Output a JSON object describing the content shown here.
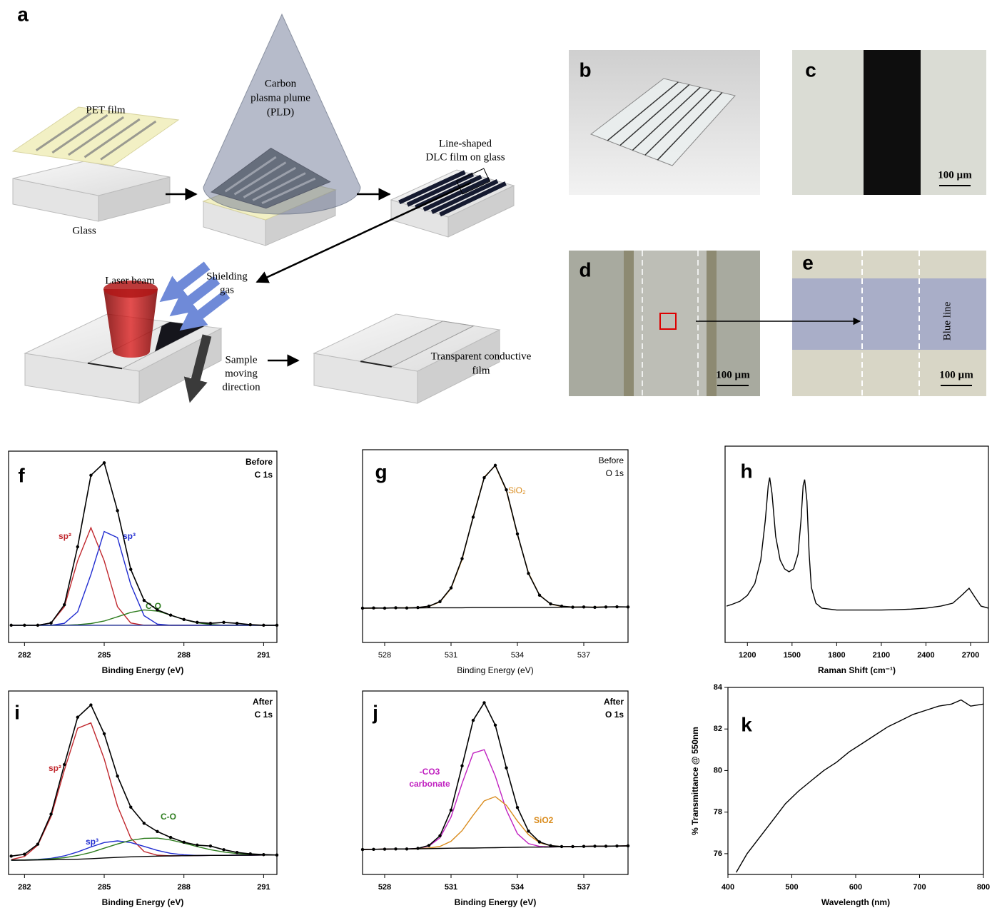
{
  "schematic": {
    "panel": "a",
    "pet_film": "PET film",
    "glass": "Glass",
    "plume": [
      "Carbon",
      "plasma plume",
      "(PLD)"
    ],
    "dlc": [
      "Line-shaped",
      "DLC film on glass"
    ],
    "laser": "Laser beam",
    "gas": [
      "Shielding",
      "gas"
    ],
    "moving": [
      "Sample",
      "moving",
      "direction"
    ],
    "film": [
      "Transparent  conductive",
      "film"
    ]
  },
  "photos": [
    {
      "panel": "b"
    },
    {
      "panel": "c",
      "scale_bar": "100 µm"
    },
    {
      "panel": "d",
      "scale_bar": "100 µm"
    },
    {
      "panel": "e",
      "scale_bar": "100 µm",
      "note": "Blue line"
    }
  ],
  "chart_data": [
    {
      "panel": "f",
      "type": "line",
      "xlabel": "Binding Energy (eV)",
      "annotations": [
        "Before",
        "C 1s"
      ],
      "xlim": [
        281.4,
        291.5
      ],
      "xticks": [
        282,
        285,
        288,
        291
      ],
      "ylim": [
        0,
        100
      ],
      "x": [
        281.5,
        282,
        282.5,
        283,
        283.5,
        284,
        284.5,
        285,
        285.5,
        286,
        286.5,
        287,
        287.5,
        288,
        288.5,
        289,
        289.5,
        290,
        290.5,
        291,
        291.5
      ],
      "series": [
        {
          "name": "sp²",
          "color": "#c0272d",
          "values": [
            9,
            9,
            9,
            10.2,
            18.7,
            42.7,
            60,
            42.7,
            18.7,
            10.2,
            9,
            9,
            9,
            9,
            9,
            9,
            9,
            9,
            9,
            9,
            9
          ]
        },
        {
          "name": "sp³",
          "color": "#1f2bd0",
          "values": [
            9,
            9,
            9,
            9,
            10,
            16,
            35.5,
            58,
            54.8,
            30.3,
            14,
            9.6,
            9,
            9,
            9,
            9,
            9,
            9,
            9,
            9,
            9
          ]
        },
        {
          "name": "C-O",
          "color": "#2e7d1f",
          "values": [
            9,
            9,
            9,
            9,
            9,
            9.3,
            9.9,
            11.2,
            13.4,
            15.7,
            17,
            16.4,
            14.3,
            12,
            10.3,
            9.4,
            9,
            9,
            9,
            9,
            9
          ]
        },
        {
          "color": "#1a2a90",
          "values": [
            9,
            9,
            9,
            9,
            9,
            9,
            9,
            9,
            9,
            9,
            9,
            9,
            9,
            9,
            9,
            9,
            9,
            9,
            9,
            9,
            9
          ]
        },
        {
          "color": "#000000",
          "markers": true,
          "values": [
            9,
            9,
            9,
            10.2,
            19.7,
            50,
            87.4,
            93.9,
            68.9,
            38.2,
            22,
            17,
            14.3,
            12,
            10.5,
            10,
            10.5,
            10,
            9.3,
            9,
            9
          ]
        }
      ]
    },
    {
      "panel": "g",
      "type": "line",
      "xlabel": "Binding Energy (eV)",
      "annotations": [
        "Before",
        "O 1s"
      ],
      "xlim": [
        527,
        539
      ],
      "xticks": [
        528,
        531,
        534,
        537
      ],
      "ylim": [
        0,
        100
      ],
      "x": [
        527,
        527.5,
        528,
        528.5,
        529,
        529.5,
        530,
        530.5,
        531,
        531.5,
        532,
        532.5,
        533,
        533.5,
        534,
        534.5,
        535,
        535.5,
        536,
        536.5,
        537,
        537.5,
        538,
        538.5,
        539
      ],
      "series": [
        {
          "name": "SiO₂",
          "color": "#d98a1a",
          "values": [
            17.8,
            17.8,
            17.9,
            17.9,
            18,
            18.1,
            18.7,
            21,
            28,
            43,
            65.3,
            85.8,
            91.7,
            78.8,
            56,
            36.1,
            24.6,
            19.9,
            18.7,
            18.4,
            18.3,
            18.3,
            18.4,
            18.4,
            18.4
          ]
        },
        {
          "color": "#000000",
          "values": [
            17.8,
            17.8,
            17.9,
            17.9,
            17.9,
            17.9,
            18,
            18,
            18,
            18,
            18.1,
            18.1,
            18.1,
            18.1,
            18.2,
            18.2,
            18.2,
            18.2,
            18.3,
            18.3,
            18.3,
            18.3,
            18.4,
            18.4,
            18.4
          ]
        },
        {
          "color": "#000000",
          "markers": true,
          "values": [
            17.8,
            17.9,
            17.8,
            18,
            17.9,
            18.1,
            18.8,
            21.2,
            28.3,
            43.5,
            65,
            85.5,
            91.9,
            79.2,
            56.3,
            35.8,
            24.5,
            20,
            18.8,
            18.3,
            18.4,
            18.2,
            18.4,
            18.5,
            18.4
          ]
        }
      ]
    },
    {
      "panel": "h",
      "type": "line",
      "xlabel": "Raman Shift (cm⁻¹)",
      "xlim": [
        1050,
        2820
      ],
      "xticks": [
        1200,
        1500,
        1800,
        2100,
        2400,
        2700
      ],
      "ylim": [
        0,
        100
      ],
      "x": [
        1060,
        1100,
        1150,
        1200,
        1250,
        1290,
        1320,
        1340,
        1350,
        1365,
        1390,
        1420,
        1450,
        1480,
        1510,
        1540,
        1560,
        1575,
        1585,
        1600,
        1615,
        1630,
        1660,
        1700,
        1800,
        1900,
        2000,
        2100,
        2200,
        2300,
        2400,
        2500,
        2580,
        2640,
        2690,
        2730,
        2770,
        2820
      ],
      "series": [
        {
          "color": "#000000",
          "values": [
            18.5,
            19.5,
            21,
            24,
            30,
            42,
            62,
            80,
            84,
            76,
            54,
            42,
            37.5,
            36,
            37.5,
            45,
            62,
            80,
            83,
            72,
            45,
            28,
            20,
            17.5,
            16.5,
            16.5,
            16.5,
            16.5,
            16.7,
            17,
            17.5,
            18.5,
            20,
            24,
            27.6,
            23,
            18.5,
            17.5
          ]
        }
      ]
    },
    {
      "panel": "i",
      "type": "line",
      "xlabel": "Binding Energy (eV)",
      "annotations": [
        "After",
        "C 1s"
      ],
      "xlim": [
        281.4,
        291.5
      ],
      "xticks": [
        282,
        285,
        288,
        291
      ],
      "ylim": [
        0,
        100
      ],
      "x": [
        281.5,
        282,
        282.5,
        283,
        283.5,
        284,
        284.5,
        285,
        285.5,
        286,
        286.5,
        287,
        287.5,
        288,
        288.5,
        289,
        289.5,
        290,
        290.5,
        291,
        291.5
      ],
      "series": [
        {
          "name": "sp²",
          "color": "#c0272d",
          "values": [
            8.1,
            9.8,
            16,
            31.6,
            56.9,
            79.7,
            82.6,
            63,
            37.3,
            19.9,
            12.5,
            10.5,
            10.1,
            10.2,
            10.3,
            10.4,
            10.4,
            10.5,
            10.5,
            10.6,
            10.6
          ]
        },
        {
          "name": "sp³",
          "color": "#1f2bd0",
          "values": [
            7.8,
            7.9,
            8.2,
            8.8,
            10.1,
            12.3,
            15,
            17.4,
            18.3,
            17.4,
            15.3,
            13.1,
            11.5,
            10.7,
            10.3,
            10.4,
            10.4,
            10.5,
            10.5,
            10.6,
            10.6
          ]
        },
        {
          "name": "C-O",
          "color": "#2e7d1f",
          "values": [
            7.8,
            7.9,
            8.1,
            8.5,
            9.1,
            10.3,
            12,
            14.3,
            16.6,
            18.6,
            19.7,
            19.8,
            18.8,
            17.1,
            15.2,
            13.5,
            12.2,
            11.4,
            10.9,
            10.6,
            10.6
          ]
        },
        {
          "color": "#000000",
          "values": [
            7.8,
            7.8,
            7.9,
            8,
            8.1,
            8.3,
            8.6,
            9,
            9.3,
            9.6,
            9.8,
            10,
            10.1,
            10.2,
            10.3,
            10.4,
            10.4,
            10.5,
            10.5,
            10.6,
            10.6
          ]
        },
        {
          "color": "#000000",
          "markers": true,
          "values": [
            10,
            11,
            16.5,
            32.9,
            59.9,
            85.7,
            92.4,
            76.7,
            53.6,
            36.7,
            27.9,
            23.4,
            20.2,
            17.6,
            16,
            15.5,
            13.5,
            12,
            11.2,
            10.8,
            10.6
          ]
        }
      ]
    },
    {
      "panel": "j",
      "type": "line",
      "xlabel": "Binding Energy (eV)",
      "annotations": [
        "After",
        "O 1s"
      ],
      "xlim": [
        527,
        539
      ],
      "xticks": [
        528,
        531,
        534,
        537
      ],
      "ylim": [
        0,
        100
      ],
      "x": [
        527,
        527.5,
        528,
        528.5,
        529,
        529.5,
        530,
        530.5,
        531,
        531.5,
        532,
        532.5,
        533,
        533.5,
        534,
        534.5,
        535,
        535.5,
        536,
        536.5,
        537,
        537.5,
        538,
        538.5,
        539
      ],
      "series": [
        {
          "name": [
            "-CO3",
            "carbonate"
          ],
          "color": "#c020c0",
          "values": [
            13.6,
            13.7,
            13.8,
            13.9,
            13.9,
            14.2,
            15.5,
            20,
            31.3,
            49.7,
            66.1,
            68,
            53.6,
            35.1,
            22.2,
            16.8,
            15.3,
            15,
            15.1,
            15.2,
            15.3,
            15.4,
            15.4,
            15.5,
            15.6
          ]
        },
        {
          "name": "SiO2",
          "color": "#d98a1a",
          "values": [
            13.6,
            13.7,
            13.8,
            13.9,
            13.9,
            14,
            14.4,
            15.3,
            18.1,
            23.9,
            32.3,
            40.1,
            42.4,
            37.7,
            29.1,
            21.7,
            17.3,
            15.7,
            15.2,
            15.2,
            15.3,
            15.4,
            15.4,
            15.5,
            15.6
          ]
        },
        {
          "color": "#000000",
          "values": [
            13.6,
            13.7,
            13.8,
            13.9,
            13.9,
            14,
            14.1,
            14.2,
            14.3,
            14.4,
            14.4,
            14.5,
            14.6,
            14.7,
            14.8,
            14.9,
            14.9,
            15,
            15.1,
            15.2,
            15.3,
            15.4,
            15.4,
            15.5,
            15.6
          ]
        },
        {
          "color": "#000000",
          "markers": true,
          "values": [
            13.6,
            13.7,
            13.8,
            13.9,
            13.9,
            14.2,
            15.8,
            21.1,
            35.1,
            59.2,
            84,
            93.6,
            81.4,
            58.1,
            36.5,
            23.6,
            17.7,
            15.7,
            15.2,
            15.2,
            15.3,
            15.4,
            15.4,
            15.5,
            15.6
          ]
        }
      ]
    },
    {
      "panel": "k",
      "type": "line",
      "xlabel": "Wavelength (nm)",
      "ylabel": "% Transmittance @ 550nm",
      "xlim": [
        400,
        800
      ],
      "xticks": [
        400,
        500,
        600,
        700,
        800
      ],
      "ylim": [
        75,
        84
      ],
      "yticks": [
        76,
        78,
        80,
        82,
        84
      ],
      "x": [
        413,
        430,
        450,
        470,
        490,
        510,
        530,
        550,
        570,
        590,
        610,
        630,
        650,
        670,
        690,
        710,
        730,
        750,
        765,
        780,
        800
      ],
      "series": [
        {
          "color": "#000000",
          "values": [
            75.1,
            76,
            76.8,
            77.6,
            78.4,
            79,
            79.5,
            80,
            80.4,
            80.9,
            81.3,
            81.7,
            82.1,
            82.4,
            82.7,
            82.9,
            83.1,
            83.2,
            83.4,
            83.1,
            83.2
          ]
        }
      ]
    }
  ]
}
